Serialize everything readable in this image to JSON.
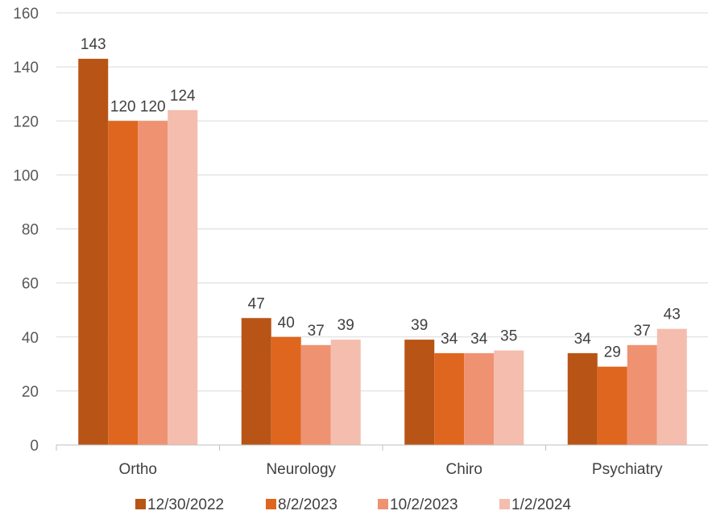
{
  "chart_data": {
    "type": "bar",
    "title": "",
    "xlabel": "",
    "ylabel": "",
    "categories": [
      "Ortho",
      "Neurology",
      "Chiro",
      "Psychiatry"
    ],
    "series": [
      {
        "name": "12/30/2022",
        "color": "#b85415",
        "values": [
          143,
          47,
          39,
          34
        ]
      },
      {
        "name": "8/2/2023",
        "color": "#df661e",
        "values": [
          120,
          40,
          34,
          29
        ]
      },
      {
        "name": "10/2/2023",
        "color": "#ef9272",
        "values": [
          120,
          37,
          34,
          37
        ]
      },
      {
        "name": "1/2/2024",
        "color": "#f4bdae",
        "values": [
          124,
          39,
          35,
          43
        ]
      }
    ],
    "ylim": [
      0,
      160
    ],
    "yticks": [
      0,
      20,
      40,
      60,
      80,
      100,
      120,
      140,
      160
    ],
    "grid": true,
    "legend_position": "bottom",
    "data_labels": true
  }
}
